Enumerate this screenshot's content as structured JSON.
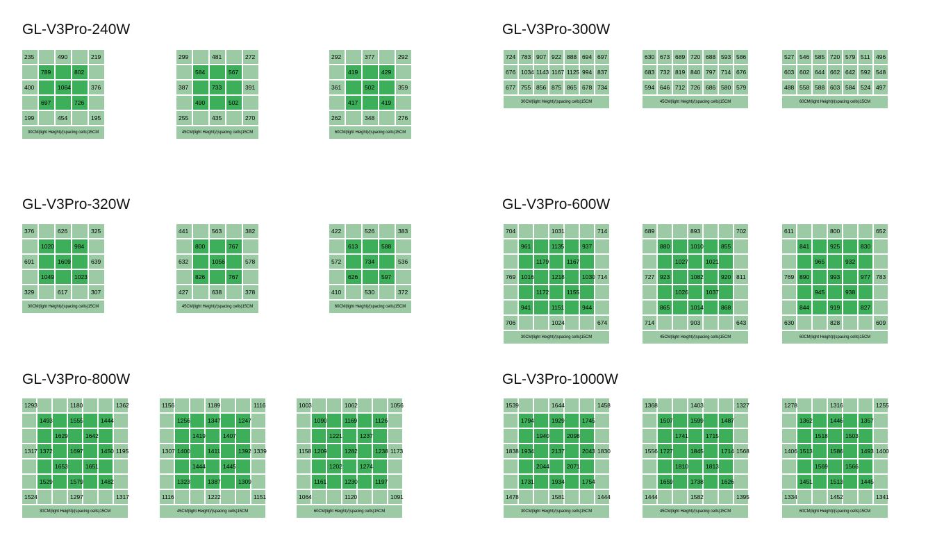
{
  "colors": {
    "light_cell": "#9ccaa5",
    "dark_cell": "#3dae5a",
    "text": "#000000"
  },
  "captions": {
    "c30_240": "30CM(light Height)/(spacing cells)15CM",
    "c45_240": "45CM(light Height)/(spacing cells)15CM",
    "c60_240": "60CM(light Height)/(spacing cells)15CM"
  },
  "products": [
    {
      "title": "GL-V3Pro-240W",
      "grids": [
        {
          "caption": "30CM(light Height)/(spacing cells)15CM",
          "rows": [
            [
              "235",
              "",
              "490",
              "",
              "219"
            ],
            [
              "",
              "789",
              "",
              "802",
              ""
            ],
            [
              "400",
              "",
              "1064",
              "",
              "376"
            ],
            [
              "",
              "697",
              "",
              "726",
              ""
            ],
            [
              "199",
              "",
              "454",
              "",
              "195"
            ]
          ]
        },
        {
          "caption": "45CM(light Height)/(spacing cells)15CM",
          "rows": [
            [
              "299",
              "",
              "481",
              "",
              "272"
            ],
            [
              "",
              "584",
              "",
              "567",
              ""
            ],
            [
              "387",
              "",
              "733",
              "",
              "391"
            ],
            [
              "",
              "490",
              "",
              "502",
              ""
            ],
            [
              "255",
              "",
              "435",
              "",
              "270"
            ]
          ]
        },
        {
          "caption": "60CM(light Height)/(spacing cells)15CM",
          "rows": [
            [
              "292",
              "",
              "377",
              "",
              "292"
            ],
            [
              "",
              "419",
              "",
              "429",
              ""
            ],
            [
              "361",
              "",
              "502",
              "",
              "359"
            ],
            [
              "",
              "417",
              "",
              "419",
              ""
            ],
            [
              "262",
              "",
              "348",
              "",
              "276"
            ]
          ]
        }
      ]
    },
    {
      "title": "GL-V3Pro-300W",
      "grids": [
        {
          "caption": "30CM(light Height)/(spacing cells)15CM",
          "rows": [
            [
              "724",
              "783",
              "907",
              "922",
              "888",
              "694",
              "697"
            ],
            [
              "676",
              "1034",
              "1143",
              "1167",
              "1125",
              "994",
              "837"
            ],
            [
              "677",
              "755",
              "856",
              "875",
              "865",
              "678",
              "734"
            ]
          ]
        },
        {
          "caption": "45CM(light Height)/(spacing cells)15CM",
          "rows": [
            [
              "630",
              "673",
              "689",
              "720",
              "688",
              "593",
              "586"
            ],
            [
              "683",
              "732",
              "819",
              "840",
              "797",
              "714",
              "676"
            ],
            [
              "594",
              "646",
              "712",
              "726",
              "686",
              "580",
              "579"
            ]
          ]
        },
        {
          "caption": "60CM(light Height)/(spacing cells)15CM",
          "rows": [
            [
              "527",
              "546",
              "585",
              "720",
              "579",
              "511",
              "496"
            ],
            [
              "603",
              "602",
              "644",
              "662",
              "642",
              "592",
              "548"
            ],
            [
              "488",
              "558",
              "588",
              "603",
              "584",
              "524",
              "497"
            ]
          ]
        }
      ]
    },
    {
      "title": "GL-V3Pro-320W",
      "grids": [
        {
          "caption": "30CM(light Height)/(spacing cells)15CM",
          "rows": [
            [
              "376",
              "",
              "626",
              "",
              "325"
            ],
            [
              "",
              "1020",
              "",
              "984",
              ""
            ],
            [
              "691",
              "",
              "1609",
              "",
              "639"
            ],
            [
              "",
              "1049",
              "",
              "1023",
              ""
            ],
            [
              "329",
              "",
              "617",
              "",
              "307"
            ]
          ]
        },
        {
          "caption": "45CM(light Height)/(spacing cells)15CM",
          "rows": [
            [
              "441",
              "",
              "563",
              "",
              "382"
            ],
            [
              "",
              "800",
              "",
              "767",
              ""
            ],
            [
              "632",
              "",
              "1056",
              "",
              "578"
            ],
            [
              "",
              "826",
              "",
              "767",
              ""
            ],
            [
              "427",
              "",
              "638",
              "",
              "378"
            ]
          ]
        },
        {
          "caption": "60CM(light Height)/(spacing cells)15CM",
          "rows": [
            [
              "422",
              "",
              "526",
              "",
              "383"
            ],
            [
              "",
              "613",
              "",
              "588",
              ""
            ],
            [
              "572",
              "",
              "734",
              "",
              "536"
            ],
            [
              "",
              "626",
              "",
              "597",
              ""
            ],
            [
              "410",
              "",
              "530",
              "",
              "372"
            ]
          ]
        }
      ]
    },
    {
      "title": "GL-V3Pro-600W",
      "grids": [
        {
          "caption": "30CM(light Height)/(spacing cells)15CM",
          "rows": [
            [
              "704",
              "",
              "",
              "1031",
              "",
              "",
              "714"
            ],
            [
              "",
              "961",
              "",
              "1135",
              "",
              "937",
              ""
            ],
            [
              "",
              "",
              "1179",
              "",
              "1167",
              "",
              ""
            ],
            [
              "769",
              "1016",
              "",
              "1218",
              "",
              "1030",
              "714"
            ],
            [
              "",
              "",
              "1172",
              "",
              "1155",
              "",
              ""
            ],
            [
              "",
              "941",
              "",
              "1151",
              "",
              "944",
              ""
            ],
            [
              "706",
              "",
              "",
              "1024",
              "",
              "",
              "674"
            ]
          ]
        },
        {
          "caption": "45CM(light Height)/(spacing cells)15CM",
          "rows": [
            [
              "689",
              "",
              "",
              "893",
              "",
              "",
              "702"
            ],
            [
              "",
              "880",
              "",
              "1010",
              "",
              "855",
              ""
            ],
            [
              "",
              "",
              "1027",
              "",
              "1021",
              "",
              ""
            ],
            [
              "727",
              "923",
              "",
              "1082",
              "",
              "920",
              "811"
            ],
            [
              "",
              "",
              "1026",
              "",
              "1037",
              "",
              ""
            ],
            [
              "",
              "865",
              "",
              "1014",
              "",
              "868",
              ""
            ],
            [
              "714",
              "",
              "",
              "903",
              "",
              "",
              "643"
            ]
          ]
        },
        {
          "caption": "60CM(light Height)/(spacing cells)15CM",
          "rows": [
            [
              "611",
              "",
              "",
              "800",
              "",
              "",
              "652"
            ],
            [
              "",
              "841",
              "",
              "925",
              "",
              "830",
              ""
            ],
            [
              "",
              "",
              "965",
              "",
              "932",
              "",
              ""
            ],
            [
              "769",
              "890",
              "",
              "993",
              "",
              "977",
              "783"
            ],
            [
              "",
              "",
              "945",
              "",
              "938",
              "",
              ""
            ],
            [
              "",
              "844",
              "",
              "919",
              "",
              "827",
              ""
            ],
            [
              "630",
              "",
              "",
              "828",
              "",
              "",
              "609"
            ]
          ]
        }
      ]
    },
    {
      "title": "GL-V3Pro-800W",
      "grids": [
        {
          "caption": "30CM(light Height)/(spacing cells)15CM",
          "rows": [
            [
              "1293",
              "",
              "",
              "1180",
              "",
              "",
              "1362"
            ],
            [
              "",
              "1493",
              "",
              "1555",
              "",
              "1444",
              ""
            ],
            [
              "",
              "",
              "1629",
              "",
              "1642",
              "",
              ""
            ],
            [
              "1317",
              "1372",
              "",
              "1697",
              "",
              "1450",
              "1195"
            ],
            [
              "",
              "",
              "1653",
              "",
              "1651",
              "",
              ""
            ],
            [
              "",
              "1529",
              "",
              "1579",
              "",
              "1482",
              ""
            ],
            [
              "1524",
              "",
              "",
              "1297",
              "",
              "",
              "1317"
            ]
          ]
        },
        {
          "caption": "45CM(light Height)/(spacing cells)15CM",
          "rows": [
            [
              "1156",
              "",
              "",
              "1189",
              "",
              "",
              "1116"
            ],
            [
              "",
              "1256",
              "",
              "1347",
              "",
              "1247",
              ""
            ],
            [
              "",
              "",
              "1419",
              "",
              "1407",
              "",
              ""
            ],
            [
              "1307",
              "1400",
              "",
              "1411",
              "",
              "1392",
              "1339"
            ],
            [
              "",
              "",
              "1444",
              "",
              "1445",
              "",
              ""
            ],
            [
              "",
              "1323",
              "",
              "1387",
              "",
              "1309",
              ""
            ],
            [
              "1116",
              "",
              "",
              "1222",
              "",
              "",
              "1151"
            ]
          ]
        },
        {
          "caption": "60CM(light Height)/(spacing cells)15CM",
          "rows": [
            [
              "1003",
              "",
              "",
              "1062",
              "",
              "",
              "1056"
            ],
            [
              "",
              "1090",
              "",
              "1169",
              "",
              "1126",
              ""
            ],
            [
              "",
              "",
              "1221",
              "",
              "1237",
              "",
              ""
            ],
            [
              "1158",
              "1209",
              "",
              "1282",
              "",
              "1238",
              "1173"
            ],
            [
              "",
              "",
              "1202",
              "",
              "1274",
              "",
              ""
            ],
            [
              "",
              "1161",
              "",
              "1230",
              "",
              "1197",
              ""
            ],
            [
              "1064",
              "",
              "",
              "1120",
              "",
              "",
              "1091"
            ]
          ]
        }
      ]
    },
    {
      "title": "GL-V3Pro-1000W",
      "grids": [
        {
          "caption": "30CM(light Height)/(spacing cells)15CM",
          "rows": [
            [
              "1539",
              "",
              "",
              "1644",
              "",
              "",
              "1458"
            ],
            [
              "",
              "1794",
              "",
              "1929",
              "",
              "1745",
              ""
            ],
            [
              "",
              "",
              "1940",
              "",
              "2098",
              "",
              ""
            ],
            [
              "1838",
              "1934",
              "",
              "2137",
              "",
              "2043",
              "1830"
            ],
            [
              "",
              "",
              "2044",
              "",
              "2071",
              "",
              ""
            ],
            [
              "",
              "1731",
              "",
              "1934",
              "",
              "1754",
              ""
            ],
            [
              "1478",
              "",
              "",
              "1581",
              "",
              "",
              "1444"
            ]
          ]
        },
        {
          "caption": "45CM(light Height)/(spacing cells)15CM",
          "rows": [
            [
              "1368",
              "",
              "",
              "1403",
              "",
              "",
              "1327"
            ],
            [
              "",
              "1507",
              "",
              "1599",
              "",
              "1487",
              ""
            ],
            [
              "",
              "",
              "1741",
              "",
              "1715",
              "",
              ""
            ],
            [
              "1556",
              "1727",
              "",
              "1845",
              "",
              "1714",
              "1568"
            ],
            [
              "",
              "",
              "1810",
              "",
              "1813",
              "",
              ""
            ],
            [
              "",
              "1659",
              "",
              "1738",
              "",
              "1626",
              ""
            ],
            [
              "1444",
              "",
              "",
              "1582",
              "",
              "",
              "1395"
            ]
          ]
        },
        {
          "caption": "60CM(light Height)/(spacing cells)15CM",
          "rows": [
            [
              "1278",
              "",
              "",
              "1316",
              "",
              "",
              "1255"
            ],
            [
              "",
              "1362",
              "",
              "1446",
              "",
              "1357",
              ""
            ],
            [
              "",
              "",
              "1518",
              "",
              "1503",
              "",
              ""
            ],
            [
              "1406",
              "1513",
              "",
              "1586",
              "",
              "1493",
              "1400"
            ],
            [
              "",
              "",
              "1569",
              "",
              "1566",
              "",
              ""
            ],
            [
              "",
              "1451",
              "",
              "1513",
              "",
              "1445",
              ""
            ],
            [
              "1334",
              "",
              "",
              "1452",
              "",
              "",
              "1341"
            ]
          ]
        }
      ]
    }
  ]
}
